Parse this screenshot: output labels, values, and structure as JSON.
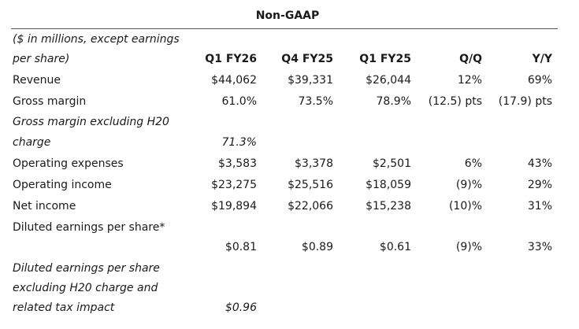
{
  "title": "Non-GAAP",
  "header": {
    "units_line1": "($ in millions, except earnings",
    "units_line2": "per share)",
    "columns": [
      "Q1 FY26",
      "Q4 FY25",
      "Q1 FY25",
      "Q/Q",
      "Y/Y"
    ]
  },
  "rows": {
    "revenue": {
      "label": "Revenue",
      "values": [
        "$44,062",
        "$39,331",
        "$26,044",
        "12%",
        "69%"
      ]
    },
    "gross_margin": {
      "label": "Gross margin",
      "values": [
        "61.0%",
        "73.5%",
        "78.9%",
        "(12.5) pts",
        "(17.9) pts"
      ]
    },
    "gross_margin_ex_h20": {
      "label_line1": "Gross margin excluding H20",
      "label_line2": "charge",
      "values": [
        "71.3%"
      ]
    },
    "operating_expenses": {
      "label": "Operating expenses",
      "values": [
        "$3,583",
        "$3,378",
        "$2,501",
        "6%",
        "43%"
      ]
    },
    "operating_income": {
      "label": "Operating income",
      "values": [
        "$23,275",
        "$25,516",
        "$18,059",
        "(9)%",
        "29%"
      ]
    },
    "net_income": {
      "label": "Net income",
      "values": [
        "$19,894",
        "$22,066",
        "$15,238",
        "(10)%",
        "31%"
      ]
    },
    "diluted_eps": {
      "label": "Diluted earnings per share*",
      "values": [
        "$0.81",
        "$0.89",
        "$0.61",
        "(9)%",
        "33%"
      ]
    },
    "diluted_eps_ex_h20": {
      "label_line1": "Diluted earnings per share",
      "label_line2": "excluding H20 charge and",
      "label_line3": "related tax impact",
      "values": [
        "$0.96"
      ]
    }
  }
}
